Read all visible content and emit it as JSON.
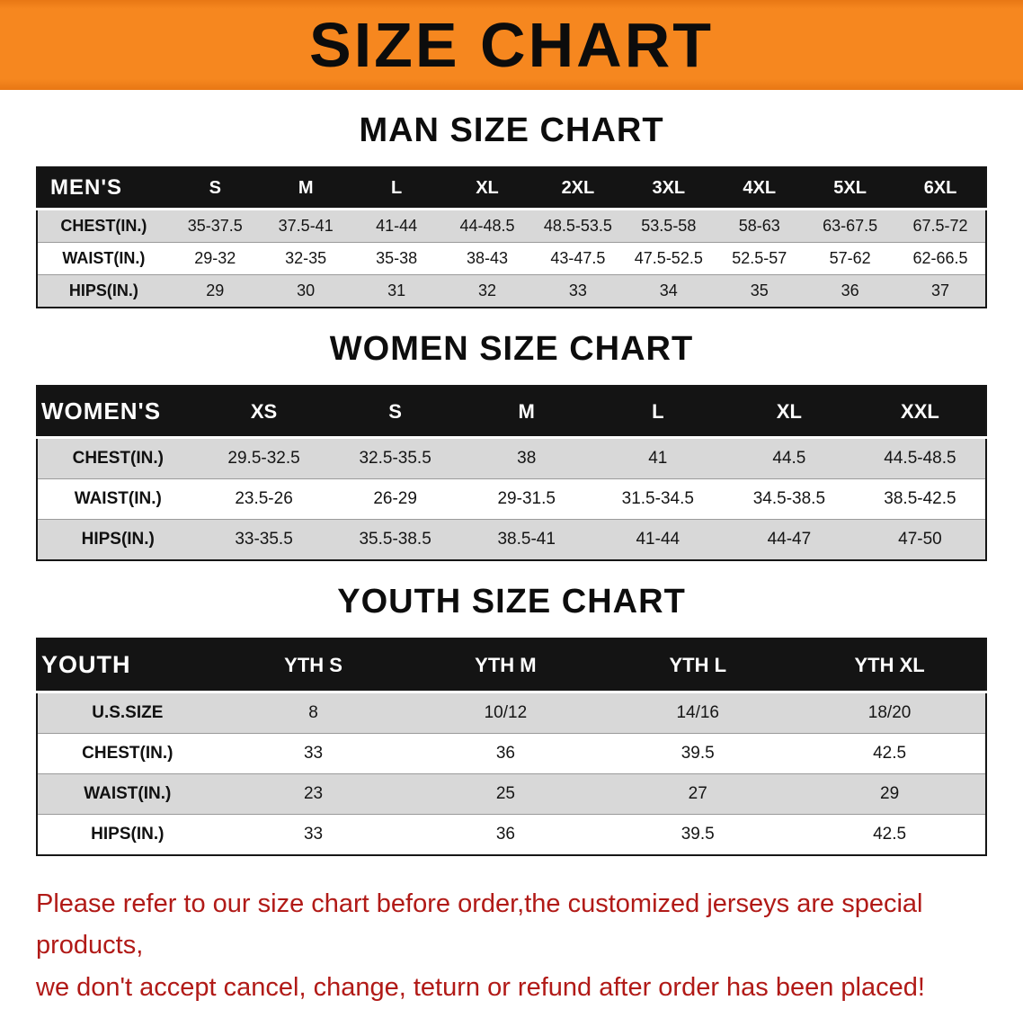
{
  "banner": {
    "title": "SIZE CHART",
    "bg_color": "#f6871f",
    "text_color": "#0c0c0c"
  },
  "colors": {
    "table_header_bg": "#141414",
    "table_header_text": "#ffffff",
    "row_alt": "#d8d8d8",
    "row_default": "#ffffff"
  },
  "sections": [
    {
      "heading": "MAN SIZE CHART",
      "table": {
        "header": [
          "MEN'S",
          "S",
          "M",
          "L",
          "XL",
          "2XL",
          "3XL",
          "4XL",
          "5XL",
          "6XL"
        ],
        "rows": [
          [
            "CHEST(IN.)",
            "35-37.5",
            "37.5-41",
            "41-44",
            "44-48.5",
            "48.5-53.5",
            "53.5-58",
            "58-63",
            "63-67.5",
            "67.5-72"
          ],
          [
            "WAIST(IN.)",
            "29-32",
            "32-35",
            "35-38",
            "38-43",
            "43-47.5",
            "47.5-52.5",
            "52.5-57",
            "57-62",
            "62-66.5"
          ],
          [
            "HIPS(IN.)",
            "29",
            "30",
            "31",
            "32",
            "33",
            "34",
            "35",
            "36",
            "37"
          ]
        ]
      }
    },
    {
      "heading": "WOMEN SIZE CHART",
      "table": {
        "header": [
          "WOMEN'S",
          "XS",
          "S",
          "M",
          "L",
          "XL",
          "XXL"
        ],
        "rows": [
          [
            "CHEST(IN.)",
            "29.5-32.5",
            "32.5-35.5",
            "38",
            "41",
            "44.5",
            "44.5-48.5"
          ],
          [
            "WAIST(IN.)",
            "23.5-26",
            "26-29",
            "29-31.5",
            "31.5-34.5",
            "34.5-38.5",
            "38.5-42.5"
          ],
          [
            "HIPS(IN.)",
            "33-35.5",
            "35.5-38.5",
            "38.5-41",
            "41-44",
            "44-47",
            "47-50"
          ]
        ]
      }
    },
    {
      "heading": "YOUTH SIZE CHART",
      "table": {
        "header": [
          "YOUTH",
          "YTH S",
          "YTH M",
          "YTH L",
          "YTH XL"
        ],
        "rows": [
          [
            "U.S.SIZE",
            "8",
            "10/12",
            "14/16",
            "18/20"
          ],
          [
            "CHEST(IN.)",
            "33",
            "36",
            "39.5",
            "42.5"
          ],
          [
            "WAIST(IN.)",
            "23",
            "25",
            "27",
            "29"
          ],
          [
            "HIPS(IN.)",
            "33",
            "36",
            "39.5",
            "42.5"
          ]
        ]
      }
    }
  ],
  "footer": {
    "line1": "Please refer to our size chart before order,the customized jerseys are special products,",
    "line2": "we don't accept cancel, change, teturn or refund after order has been placed!",
    "text_color": "#b11a17"
  }
}
